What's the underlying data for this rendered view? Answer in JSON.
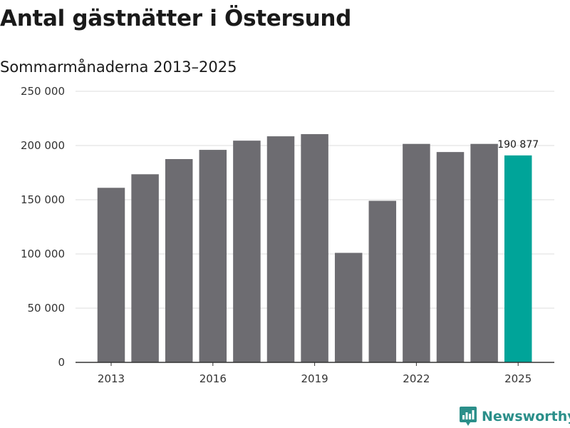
{
  "header": {
    "title": "Antal gästnätter i Östersund",
    "subtitle": "Sommarmånaderna 2013–2025"
  },
  "brand": {
    "name": "Newsworthy",
    "icon": "newsworthy-logo-icon",
    "color": "#2b8f8a"
  },
  "colors": {
    "bar": "#6d6c71",
    "highlight": "#00a499",
    "grid": "#dddddd",
    "axis": "#333333"
  },
  "chart_data": {
    "type": "bar",
    "title": "Antal gästnätter i Östersund",
    "subtitle": "Sommarmånaderna 2013–2025",
    "categories": [
      "2013",
      "2014",
      "2015",
      "2016",
      "2017",
      "2018",
      "2019",
      "2020",
      "2021",
      "2022",
      "2023",
      "2024",
      "2025"
    ],
    "values": [
      161000,
      173500,
      187500,
      196000,
      204500,
      208500,
      210500,
      101000,
      149000,
      201500,
      194000,
      201500,
      190877
    ],
    "highlight_index": 12,
    "data_labels": [
      {
        "index": 12,
        "text": "190 877"
      }
    ],
    "x_tick_labels": [
      "2013",
      "2016",
      "2019",
      "2022",
      "2025"
    ],
    "y_ticks": [
      0,
      50000,
      100000,
      150000,
      200000,
      250000
    ],
    "y_tick_labels": [
      "0",
      "50 000",
      "100 000",
      "150 000",
      "200 000",
      "250 000"
    ],
    "ylim": [
      0,
      250000
    ],
    "grid": true,
    "legend": "none"
  }
}
